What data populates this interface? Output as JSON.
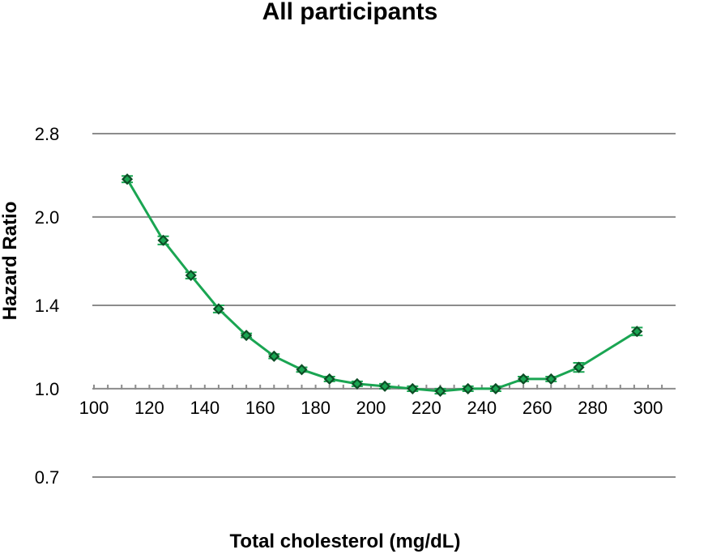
{
  "chart_data": {
    "type": "line",
    "title": "All participants",
    "xlabel": "Total cholesterol (mg/dL)",
    "ylabel": "Hazard Ratio",
    "x_ticks": [
      100,
      120,
      140,
      160,
      180,
      200,
      220,
      240,
      260,
      280,
      300
    ],
    "x_tick_labels": [
      "100",
      "120",
      "140",
      "160",
      "180",
      "200",
      "220",
      "240",
      "260",
      "280",
      "300"
    ],
    "xlim": [
      100,
      300
    ],
    "y_ticks": [
      0.7,
      1.0,
      1.4,
      2.0,
      2.8
    ],
    "y_tick_labels": [
      "0.7",
      "1.0",
      "1.4",
      "2.0",
      "2.8"
    ],
    "ylim": [
      0.7,
      2.8
    ],
    "y_scale": "log",
    "grid": true,
    "series": [
      {
        "color": "#1aa552",
        "marker_color": "#0d4d26",
        "x": [
          112,
          125,
          135,
          145,
          155,
          165,
          175,
          185,
          195,
          205,
          215,
          225,
          235,
          245,
          255,
          265,
          275,
          296
        ],
        "y": [
          2.33,
          1.82,
          1.58,
          1.38,
          1.24,
          1.14,
          1.08,
          1.04,
          1.02,
          1.01,
          1.0,
          0.99,
          1.0,
          1.0,
          1.04,
          1.04,
          1.09,
          1.26
        ],
        "y_low": [
          2.3,
          1.79,
          1.56,
          1.36,
          1.23,
          1.13,
          1.07,
          1.03,
          1.01,
          1.0,
          0.99,
          0.98,
          0.99,
          0.99,
          1.03,
          1.03,
          1.07,
          1.24
        ],
        "y_high": [
          2.36,
          1.85,
          1.6,
          1.4,
          1.25,
          1.15,
          1.09,
          1.05,
          1.03,
          1.02,
          1.01,
          1.0,
          1.01,
          1.01,
          1.05,
          1.05,
          1.11,
          1.28
        ]
      }
    ]
  }
}
